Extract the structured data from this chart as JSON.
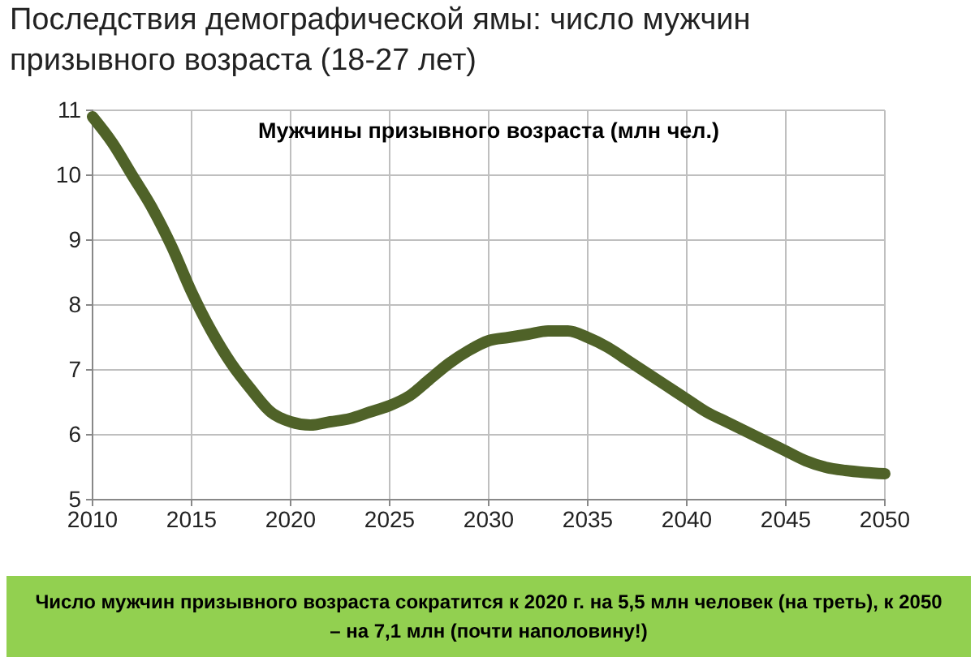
{
  "chart_data": {
    "type": "line",
    "title": "Последствия демографической ямы: число мужчин призывного возраста (18-27 лет)",
    "subtitle": "Мужчины призывного возраста (млн чел.)",
    "x": [
      2010,
      2011,
      2012,
      2013,
      2014,
      2015,
      2016,
      2017,
      2018,
      2019,
      2020,
      2021,
      2022,
      2023,
      2024,
      2025,
      2026,
      2027,
      2028,
      2029,
      2030,
      2031,
      2032,
      2033,
      2034,
      2035,
      2036,
      2037,
      2038,
      2039,
      2040,
      2041,
      2042,
      2043,
      2044,
      2045,
      2046,
      2047,
      2048,
      2049,
      2050
    ],
    "series": [
      {
        "color": "#4f6228",
        "values": [
          10.9,
          10.5,
          10.0,
          9.5,
          8.9,
          8.2,
          7.6,
          7.1,
          6.7,
          6.35,
          6.2,
          6.15,
          6.2,
          6.25,
          6.35,
          6.45,
          6.6,
          6.85,
          7.1,
          7.3,
          7.45,
          7.5,
          7.55,
          7.6,
          7.6,
          7.5,
          7.35,
          7.15,
          6.95,
          6.75,
          6.55,
          6.35,
          6.2,
          6.05,
          5.9,
          5.75,
          5.6,
          5.5,
          5.45,
          5.42,
          5.4
        ]
      }
    ],
    "xlim": [
      2010,
      2050
    ],
    "xticks": [
      2010,
      2015,
      2020,
      2025,
      2030,
      2035,
      2040,
      2045,
      2050
    ],
    "ylim": [
      5,
      11
    ],
    "yticks": [
      5,
      6,
      7,
      8,
      9,
      10,
      11
    ],
    "grid": true,
    "marker": "none",
    "line_style": "solid",
    "annotations": [
      "Число мужчин призывного возраста сократится к 2020 г. на 5,5 млн человек (на треть), к 2050 – на 7,1 млн (почти наполовину!)"
    ]
  }
}
